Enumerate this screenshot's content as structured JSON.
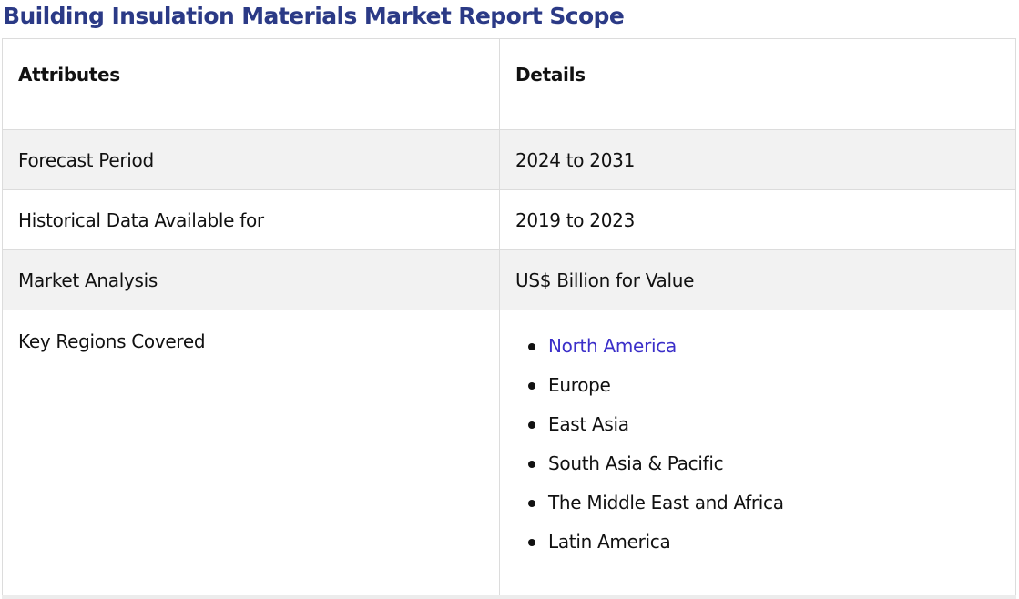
{
  "title": "Building Insulation Materials Market Report Scope",
  "table": {
    "headers": [
      "Attributes",
      "Details"
    ],
    "rows": [
      {
        "attribute": "Forecast Period",
        "detail": "2024 to 2031"
      },
      {
        "attribute": "Historical Data Available for",
        "detail": "2019 to 2023"
      },
      {
        "attribute": "Market Analysis",
        "detail": "US$ Billion for Value"
      }
    ],
    "regions_row": {
      "attribute": "Key Regions Covered",
      "items": [
        {
          "label": "North America",
          "link": true
        },
        {
          "label": "Europe",
          "link": false
        },
        {
          "label": "East Asia",
          "link": false
        },
        {
          "label": "South Asia & Pacific",
          "link": false
        },
        {
          "label": "The Middle East and Africa",
          "link": false
        },
        {
          "label": "Latin America",
          "link": false
        }
      ]
    }
  },
  "colors": {
    "title": "#2b3a86",
    "link": "#3b2fc9",
    "row_shade": "#f2f2f2",
    "border": "#dcdcdc"
  }
}
